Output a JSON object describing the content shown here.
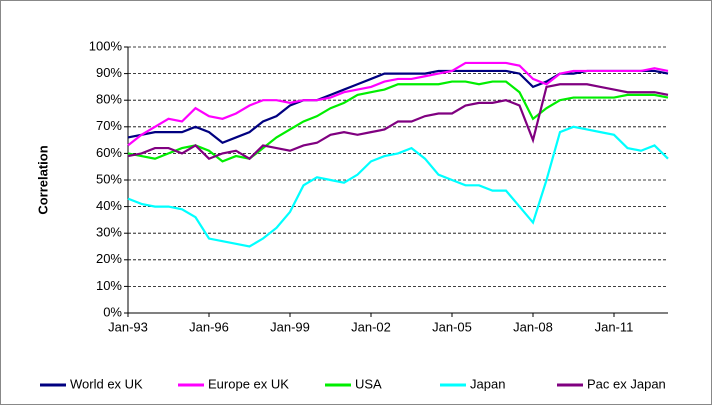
{
  "chart_data": {
    "type": "line",
    "y_label": "Correlation",
    "categories": [
      "Jan-93",
      null,
      null,
      null,
      null,
      null,
      "Jan-96",
      null,
      null,
      null,
      null,
      null,
      "Jan-99",
      null,
      null,
      null,
      null,
      null,
      "Jan-02",
      null,
      null,
      null,
      null,
      null,
      "Jan-05",
      null,
      null,
      null,
      null,
      null,
      "Jan-08",
      null,
      null,
      null,
      null,
      null,
      "Jan-11",
      null,
      null,
      null,
      null
    ],
    "ylim": [
      0,
      100
    ],
    "yticks": [
      {
        "value": 0,
        "label": "0%"
      },
      {
        "value": 10,
        "label": "10%"
      },
      {
        "value": 20,
        "label": "20%"
      },
      {
        "value": 30,
        "label": "30%"
      },
      {
        "value": 40,
        "label": "40%"
      },
      {
        "value": 50,
        "label": "50%"
      },
      {
        "value": 60,
        "label": "60%"
      },
      {
        "value": 70,
        "label": "70%"
      },
      {
        "value": 80,
        "label": "80%"
      },
      {
        "value": 90,
        "label": "90%"
      },
      {
        "value": 100,
        "label": "100%"
      }
    ],
    "grid": true,
    "legend": "bottom",
    "series": [
      {
        "name": "World ex UK",
        "color": "#000080",
        "values": [
          66,
          67,
          68,
          68,
          68,
          70,
          68,
          64,
          66,
          68,
          72,
          74,
          78,
          80,
          80,
          82,
          84,
          86,
          88,
          90,
          90,
          90,
          90,
          91,
          91,
          91,
          91,
          91,
          91,
          90,
          85,
          87,
          90,
          90,
          91,
          91,
          91,
          91,
          91,
          91,
          90
        ]
      },
      {
        "name": "Europe ex UK",
        "color": "#ff00ff",
        "values": [
          63,
          67,
          70,
          73,
          72,
          77,
          74,
          73,
          75,
          78,
          80,
          80,
          79,
          80,
          80,
          81,
          83,
          84,
          85,
          87,
          88,
          88,
          89,
          90,
          91,
          94,
          94,
          94,
          94,
          93,
          88,
          86,
          90,
          91,
          91,
          91,
          91,
          91,
          91,
          92,
          91
        ]
      },
      {
        "name": "USA",
        "color": "#00ee00",
        "values": [
          60,
          59,
          58,
          60,
          62,
          63,
          61,
          57,
          59,
          58,
          62,
          66,
          69,
          72,
          74,
          77,
          79,
          82,
          83,
          84,
          86,
          86,
          86,
          86,
          87,
          87,
          86,
          87,
          87,
          83,
          73,
          77,
          80,
          81,
          81,
          81,
          81,
          82,
          82,
          82,
          81
        ]
      },
      {
        "name": "Japan",
        "color": "#00ffff",
        "values": [
          43,
          41,
          40,
          40,
          39,
          36,
          28,
          27,
          26,
          25,
          28,
          32,
          38,
          48,
          51,
          50,
          49,
          52,
          57,
          59,
          60,
          62,
          58,
          52,
          50,
          48,
          48,
          46,
          46,
          40,
          34,
          50,
          68,
          70,
          69,
          68,
          67,
          62,
          61,
          63,
          58
        ]
      },
      {
        "name": "Pac ex Japan",
        "color": "#800080",
        "values": [
          59,
          60,
          62,
          62,
          60,
          63,
          58,
          60,
          61,
          58,
          63,
          62,
          61,
          63,
          64,
          67,
          68,
          67,
          68,
          69,
          72,
          72,
          74,
          75,
          75,
          78,
          79,
          79,
          80,
          78,
          65,
          85,
          86,
          86,
          86,
          85,
          84,
          83,
          83,
          83,
          82
        ]
      }
    ]
  }
}
